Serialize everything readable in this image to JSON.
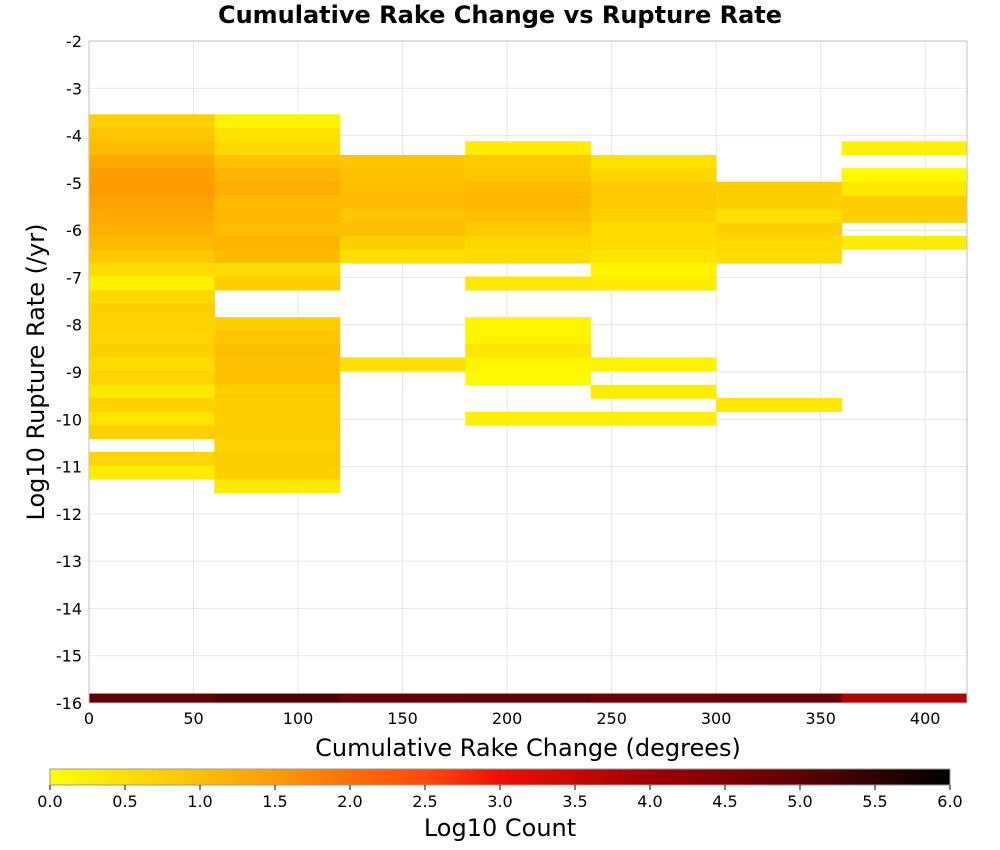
{
  "chart_data": {
    "type": "heatmap",
    "title": "Cumulative Rake Change vs Rupture Rate",
    "xlabel": "Cumulative Rake Change (degrees)",
    "ylabel": "Log10 Rupture Rate (/yr)",
    "xlim": [
      0,
      420
    ],
    "ylim": [
      -16,
      -2
    ],
    "x_ticks": [
      "0",
      "50",
      "100",
      "150",
      "200",
      "250",
      "300",
      "350",
      "400"
    ],
    "y_ticks": [
      "-2",
      "-3",
      "-4",
      "-5",
      "-6",
      "-7",
      "-8",
      "-9",
      "-10",
      "-11",
      "-12",
      "-13",
      "-14",
      "-15",
      "-16"
    ],
    "grid": true,
    "x_bin_width": 60,
    "y_bin_height": 0.2857,
    "colorbar": {
      "label": "Log10 Count",
      "min": 0,
      "max": 6,
      "ticks": [
        "0.0",
        "0.5",
        "1.0",
        "1.5",
        "2.0",
        "2.5",
        "3.0",
        "3.5",
        "4.0",
        "4.5",
        "5.0",
        "5.5",
        "6.0"
      ],
      "stops": [
        {
          "v": 0.0,
          "color": "#ffff00"
        },
        {
          "v": 1.0,
          "color": "#ffbf00"
        },
        {
          "v": 1.5,
          "color": "#ff9a00"
        },
        {
          "v": 2.0,
          "color": "#ff7000"
        },
        {
          "v": 2.5,
          "color": "#ff4a10"
        },
        {
          "v": 3.0,
          "color": "#f01000"
        },
        {
          "v": 4.0,
          "color": "#a00000"
        },
        {
          "v": 5.0,
          "color": "#600000"
        },
        {
          "v": 6.0,
          "color": "#000000"
        }
      ]
    },
    "columns": [
      {
        "x": 0,
        "cells": [
          [
            -3.55,
            0.75
          ],
          [
            -3.84,
            0.9
          ],
          [
            -4.12,
            1.05
          ],
          [
            -4.41,
            1.3
          ],
          [
            -4.69,
            1.45
          ],
          [
            -4.98,
            1.5
          ],
          [
            -5.27,
            1.4
          ],
          [
            -5.55,
            1.3
          ],
          [
            -5.84,
            1.2
          ],
          [
            -6.12,
            1.05
          ],
          [
            -6.41,
            0.85
          ],
          [
            -6.69,
            0.55
          ],
          [
            -6.98,
            0.2
          ],
          [
            -7.27,
            0.6
          ],
          [
            -7.55,
            0.75
          ],
          [
            -7.84,
            0.7
          ],
          [
            -8.12,
            0.65
          ],
          [
            -8.41,
            0.75
          ],
          [
            -8.69,
            0.55
          ],
          [
            -8.98,
            0.65
          ],
          [
            -9.27,
            0.35
          ],
          [
            -9.55,
            0.7
          ],
          [
            -9.84,
            0.4
          ],
          [
            -10.12,
            0.75
          ],
          [
            -10.69,
            0.65
          ],
          [
            -10.98,
            0.3
          ]
        ]
      },
      {
        "x": 60,
        "cells": [
          [
            -3.55,
            0.2
          ],
          [
            -3.84,
            0.45
          ],
          [
            -4.12,
            0.6
          ],
          [
            -4.41,
            0.95
          ],
          [
            -4.69,
            1.15
          ],
          [
            -4.98,
            1.25
          ],
          [
            -5.27,
            1.05
          ],
          [
            -5.55,
            1.1
          ],
          [
            -5.84,
            1.0
          ],
          [
            -6.12,
            1.15
          ],
          [
            -6.41,
            1.05
          ],
          [
            -6.69,
            0.55
          ],
          [
            -6.98,
            0.75
          ],
          [
            -7.84,
            0.75
          ],
          [
            -8.12,
            0.9
          ],
          [
            -8.41,
            1.0
          ],
          [
            -8.69,
            0.95
          ],
          [
            -8.98,
            0.95
          ],
          [
            -9.27,
            0.8
          ],
          [
            -9.55,
            0.75
          ],
          [
            -9.84,
            0.75
          ],
          [
            -10.12,
            0.8
          ],
          [
            -10.41,
            0.7
          ],
          [
            -10.69,
            0.8
          ],
          [
            -10.98,
            0.75
          ],
          [
            -11.27,
            0.35
          ]
        ]
      },
      {
        "x": 120,
        "cells": [
          [
            -4.41,
            0.9
          ],
          [
            -4.69,
            0.95
          ],
          [
            -4.98,
            1.0
          ],
          [
            -5.27,
            1.05
          ],
          [
            -5.55,
            0.9
          ],
          [
            -5.84,
            1.0
          ],
          [
            -6.12,
            0.75
          ],
          [
            -6.41,
            0.5
          ],
          [
            -8.69,
            0.5
          ]
        ]
      },
      {
        "x": 180,
        "cells": [
          [
            -4.12,
            0.3
          ],
          [
            -4.41,
            0.85
          ],
          [
            -4.69,
            0.9
          ],
          [
            -4.98,
            1.05
          ],
          [
            -5.27,
            1.1
          ],
          [
            -5.55,
            1.0
          ],
          [
            -5.84,
            0.85
          ],
          [
            -6.12,
            0.65
          ],
          [
            -6.41,
            0.55
          ],
          [
            -6.98,
            0.35
          ],
          [
            -7.84,
            0.15
          ],
          [
            -8.12,
            0.2
          ],
          [
            -8.41,
            0.4
          ],
          [
            -8.69,
            0.15
          ],
          [
            -8.98,
            0.1
          ],
          [
            -9.84,
            0.25
          ]
        ]
      },
      {
        "x": 240,
        "cells": [
          [
            -4.41,
            0.45
          ],
          [
            -4.69,
            0.65
          ],
          [
            -4.98,
            0.85
          ],
          [
            -5.27,
            0.85
          ],
          [
            -5.55,
            0.75
          ],
          [
            -5.84,
            0.55
          ],
          [
            -6.12,
            0.55
          ],
          [
            -6.41,
            0.4
          ],
          [
            -6.69,
            0.15
          ],
          [
            -6.98,
            0.3
          ],
          [
            -8.69,
            0.2
          ],
          [
            -9.27,
            0.3
          ],
          [
            -9.84,
            0.25
          ]
        ]
      },
      {
        "x": 300,
        "cells": [
          [
            -4.98,
            0.8
          ],
          [
            -5.27,
            0.75
          ],
          [
            -5.55,
            0.5
          ],
          [
            -5.84,
            0.75
          ],
          [
            -6.12,
            0.6
          ],
          [
            -6.41,
            0.55
          ],
          [
            -9.55,
            0.35
          ]
        ]
      },
      {
        "x": 360,
        "cells": [
          [
            -4.12,
            0.2
          ],
          [
            -4.69,
            0.1
          ],
          [
            -4.98,
            0.35
          ],
          [
            -5.27,
            0.8
          ],
          [
            -5.55,
            0.75
          ],
          [
            -6.12,
            0.3
          ]
        ]
      }
    ],
    "bottom_row": {
      "y": -16.0,
      "height": 0.2,
      "cells": [
        [
          0,
          5.0
        ],
        [
          60,
          5.2
        ],
        [
          120,
          4.9
        ],
        [
          180,
          5.0
        ],
        [
          240,
          4.8
        ],
        [
          300,
          4.9
        ],
        [
          360,
          3.8
        ]
      ]
    }
  }
}
